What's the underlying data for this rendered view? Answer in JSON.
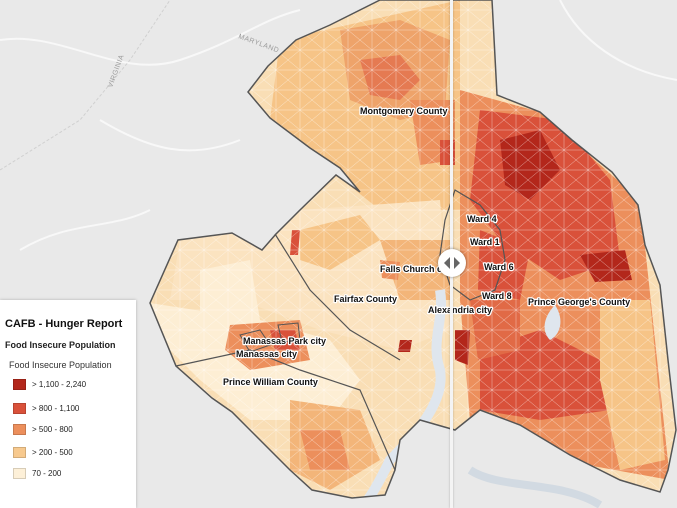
{
  "legend": {
    "title": "CAFB - Hunger Report",
    "subtitle": "Food Insecure Population",
    "layer_label": "Food Insecure Population",
    "classes": [
      {
        "label": "> 1,100 - 2,240",
        "color": "#b3271b"
      },
      {
        "label": "> 800 - 1,100",
        "color": "#d9513a"
      },
      {
        "label": "> 500 - 800",
        "color": "#ec8f5c"
      },
      {
        "label": "> 200 - 500",
        "color": "#f7c98e"
      },
      {
        "label": "70 - 200",
        "color": "#fdf0d8"
      }
    ]
  },
  "map": {
    "place_labels": {
      "montgomery": "Montgomery County",
      "ward4": "Ward 4",
      "ward1": "Ward 1",
      "ward6": "Ward 6",
      "ward8": "Ward 8",
      "falls_church": "Falls Church c",
      "fairfax": "Fairfax County",
      "alexandria": "Alexandria city",
      "prince_georges": "Prince George's County",
      "manassas_park": "Manassas Park city",
      "manassas": "Manassas city",
      "prince_william": "Prince William County"
    },
    "basemap_labels": {
      "maryland": "MARYLAND",
      "virginia": "VIRGINIA"
    }
  },
  "swipe": {
    "handle_icon": "swipe-arrows-icon"
  }
}
